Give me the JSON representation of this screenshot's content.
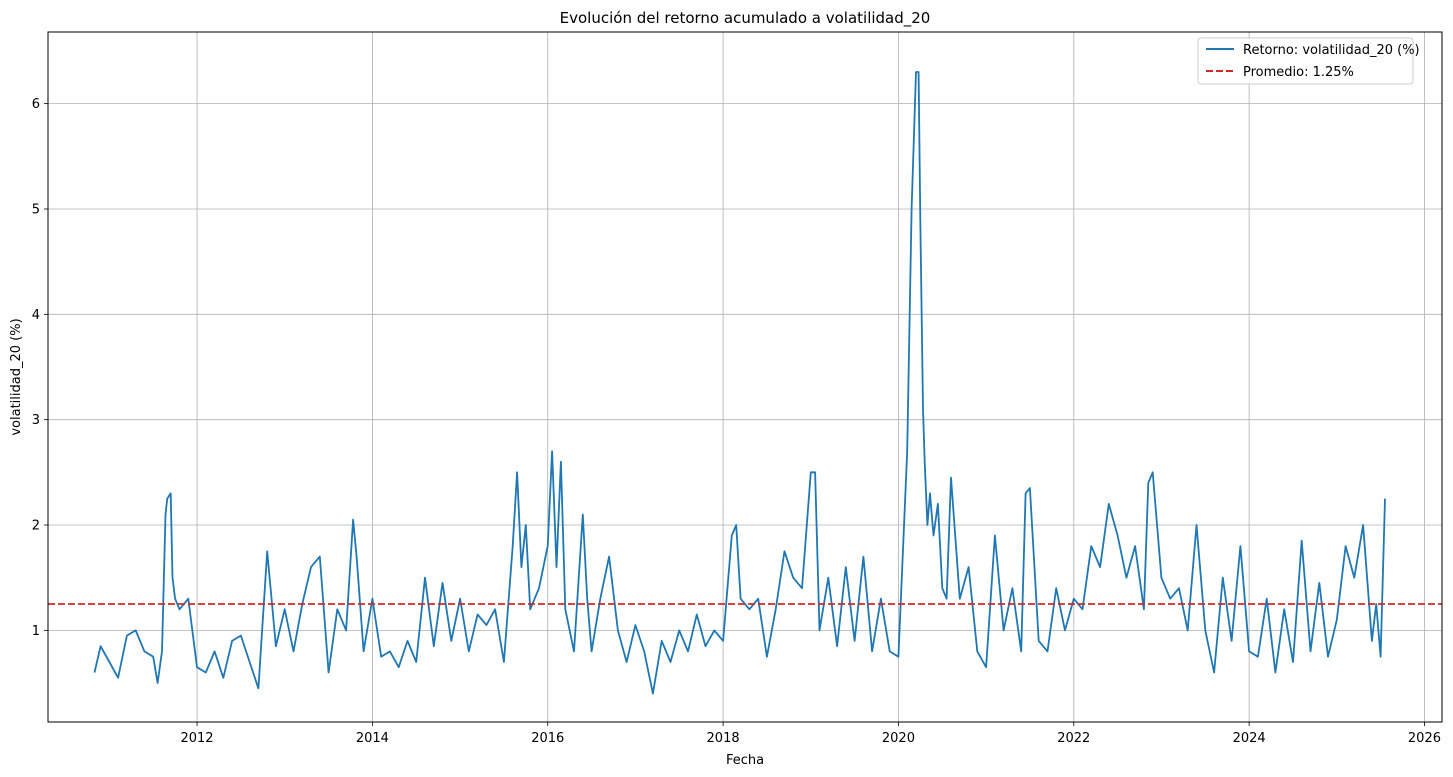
{
  "chart_data": {
    "type": "line",
    "title": "Evolución del retorno acumulado a volatilidad_20",
    "xlabel": "Fecha",
    "ylabel": "volatilidad_20 (%)",
    "xlim": [
      2010.3,
      2026.2
    ],
    "ylim": [
      0.13,
      6.68
    ],
    "x_ticks": [
      2012,
      2014,
      2016,
      2018,
      2020,
      2022,
      2024,
      2026
    ],
    "y_ticks": [
      1,
      2,
      3,
      4,
      5,
      6
    ],
    "grid": true,
    "legend_position": "top-right",
    "series": [
      {
        "name": "Retorno: volatilidad_20 (%)",
        "color": "#1f77b4",
        "style": "solid",
        "x": [
          2010.83,
          2010.9,
          2011.0,
          2011.1,
          2011.2,
          2011.3,
          2011.4,
          2011.5,
          2011.55,
          2011.6,
          2011.64,
          2011.66,
          2011.7,
          2011.72,
          2011.75,
          2011.8,
          2011.9,
          2012.0,
          2012.1,
          2012.2,
          2012.3,
          2012.4,
          2012.5,
          2012.6,
          2012.7,
          2012.8,
          2012.9,
          2013.0,
          2013.1,
          2013.2,
          2013.3,
          2013.4,
          2013.5,
          2013.6,
          2013.7,
          2013.78,
          2013.82,
          2013.9,
          2014.0,
          2014.1,
          2014.2,
          2014.3,
          2014.4,
          2014.5,
          2014.6,
          2014.7,
          2014.8,
          2014.9,
          2015.0,
          2015.1,
          2015.2,
          2015.3,
          2015.4,
          2015.5,
          2015.6,
          2015.65,
          2015.7,
          2015.75,
          2015.8,
          2015.9,
          2016.0,
          2016.05,
          2016.1,
          2016.15,
          2016.2,
          2016.3,
          2016.4,
          2016.45,
          2016.5,
          2016.6,
          2016.7,
          2016.8,
          2016.9,
          2017.0,
          2017.1,
          2017.2,
          2017.3,
          2017.4,
          2017.5,
          2017.6,
          2017.7,
          2017.8,
          2017.9,
          2018.0,
          2018.1,
          2018.15,
          2018.2,
          2018.3,
          2018.4,
          2018.5,
          2018.6,
          2018.7,
          2018.8,
          2018.9,
          2019.0,
          2019.05,
          2019.1,
          2019.2,
          2019.3,
          2019.4,
          2019.5,
          2019.6,
          2019.7,
          2019.8,
          2019.9,
          2020.0,
          2020.1,
          2020.15,
          2020.2,
          2020.23,
          2020.25,
          2020.28,
          2020.3,
          2020.33,
          2020.36,
          2020.4,
          2020.45,
          2020.5,
          2020.55,
          2020.6,
          2020.7,
          2020.8,
          2020.9,
          2021.0,
          2021.1,
          2021.2,
          2021.3,
          2021.4,
          2021.45,
          2021.5,
          2021.6,
          2021.7,
          2021.8,
          2021.9,
          2022.0,
          2022.1,
          2022.2,
          2022.3,
          2022.4,
          2022.5,
          2022.6,
          2022.7,
          2022.8,
          2022.85,
          2022.9,
          2023.0,
          2023.1,
          2023.2,
          2023.3,
          2023.4,
          2023.5,
          2023.6,
          2023.7,
          2023.8,
          2023.9,
          2024.0,
          2024.1,
          2024.2,
          2024.3,
          2024.4,
          2024.5,
          2024.6,
          2024.7,
          2024.8,
          2024.9,
          2025.0,
          2025.1,
          2025.2,
          2025.3,
          2025.4,
          2025.45,
          2025.5,
          2025.55
        ],
        "y": [
          0.6,
          0.85,
          0.7,
          0.55,
          0.95,
          1.0,
          0.8,
          0.75,
          0.5,
          0.8,
          2.1,
          2.25,
          2.3,
          1.5,
          1.3,
          1.2,
          1.3,
          0.65,
          0.6,
          0.8,
          0.55,
          0.9,
          0.95,
          0.7,
          0.45,
          1.75,
          0.85,
          1.2,
          0.8,
          1.25,
          1.6,
          1.7,
          0.6,
          1.2,
          1.0,
          2.05,
          1.7,
          0.8,
          1.3,
          0.75,
          0.8,
          0.65,
          0.9,
          0.7,
          1.5,
          0.85,
          1.45,
          0.9,
          1.3,
          0.8,
          1.15,
          1.05,
          1.2,
          0.7,
          1.8,
          2.5,
          1.6,
          2.0,
          1.2,
          1.4,
          1.8,
          2.7,
          1.6,
          2.6,
          1.2,
          0.8,
          2.1,
          1.3,
          0.8,
          1.3,
          1.7,
          1.0,
          0.7,
          1.05,
          0.8,
          0.4,
          0.9,
          0.7,
          1.0,
          0.8,
          1.15,
          0.85,
          1.0,
          0.9,
          1.9,
          2.0,
          1.3,
          1.2,
          1.3,
          0.75,
          1.2,
          1.75,
          1.5,
          1.4,
          2.5,
          2.5,
          1.0,
          1.5,
          0.85,
          1.6,
          0.9,
          1.7,
          0.8,
          1.3,
          0.8,
          0.75,
          2.7,
          5.0,
          6.3,
          6.3,
          4.9,
          3.1,
          2.6,
          2.0,
          2.3,
          1.9,
          2.2,
          1.4,
          1.3,
          2.45,
          1.3,
          1.6,
          0.8,
          0.65,
          1.9,
          1.0,
          1.4,
          0.8,
          2.3,
          2.35,
          0.9,
          0.8,
          1.4,
          1.0,
          1.3,
          1.2,
          1.8,
          1.6,
          2.2,
          1.9,
          1.5,
          1.8,
          1.2,
          2.4,
          2.5,
          1.5,
          1.3,
          1.4,
          1.0,
          2.0,
          1.0,
          0.6,
          1.5,
          0.9,
          1.8,
          0.8,
          0.75,
          1.3,
          0.6,
          1.2,
          0.7,
          1.85,
          0.8,
          1.45,
          0.75,
          1.1,
          1.8,
          1.5,
          2.0,
          0.9,
          1.25,
          0.75,
          2.25
        ]
      },
      {
        "name": "Promedio: 1.25%",
        "color": "#d62728",
        "style": "dashed",
        "y_constant": 1.25
      }
    ]
  }
}
